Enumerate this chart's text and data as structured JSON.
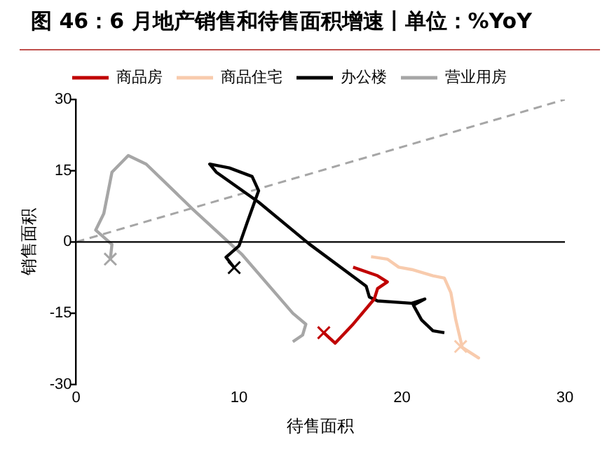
{
  "chart_data": {
    "type": "line",
    "title": "图 46：6 月地产销售和待售面积增速丨单位：%YoY",
    "xlabel": "待售面积",
    "ylabel": "销售面积",
    "xlim": [
      0,
      30
    ],
    "xticks": [
      0,
      10,
      20,
      30
    ],
    "ylim": [
      -30,
      30
    ],
    "yticks": [
      -30,
      -15,
      0,
      15,
      30
    ],
    "grid": false,
    "ref_lines": [
      {
        "axis": "y",
        "value": 0,
        "color": "#000000",
        "line_style": "solid"
      }
    ],
    "legend": "top",
    "marker": "none",
    "line_style": "solid",
    "series": [
      {
        "name": "商品房",
        "color": "#c00000",
        "x": [
          17,
          18.5,
          19.1,
          18.5,
          18.3,
          17,
          15.9,
          15.2
        ],
        "values": [
          -5.3,
          -7.1,
          -8.4,
          -9.8,
          -12,
          -17.3,
          -21.3,
          -19.1
        ]
      },
      {
        "name": "商品住宅",
        "color": "#f8cbad",
        "x": [
          18.1,
          19.1,
          19.8,
          20.6,
          21.9,
          22.6,
          23,
          23.3,
          23.7,
          24.7,
          23.6
        ],
        "values": [
          -3.1,
          -3.6,
          -5.3,
          -5.8,
          -7.1,
          -7.6,
          -10.7,
          -16.4,
          -22.2,
          -24.4,
          -22
        ]
      },
      {
        "name": "办公楼",
        "color": "#000000",
        "x": [
          22.6,
          21.9,
          21.2,
          20.7,
          21.4,
          20.6,
          18.5,
          18,
          17.8,
          14.3,
          11.2,
          8.6,
          8.2,
          9.4,
          10.8,
          11.2,
          10.5,
          10,
          9.2,
          9.7
        ],
        "values": [
          -19.1,
          -18.7,
          -16.4,
          -13.3,
          -12,
          -12.9,
          -12.4,
          -11.6,
          -9.3,
          -0.4,
          8.4,
          14.7,
          16.4,
          15.6,
          13.8,
          10.8,
          4.1,
          -0.8,
          -3.2,
          -5.4
        ]
      },
      {
        "name": "营业用房",
        "color": "#a6a6a6",
        "x": [
          13.3,
          13.9,
          14.1,
          13.3,
          10.2,
          7.1,
          4.3,
          3.2,
          2.2,
          1.7,
          1.2,
          2.2,
          2.1
        ],
        "values": [
          -21,
          -19.6,
          -17.3,
          -15,
          -2.7,
          7.1,
          16.4,
          18.2,
          14.7,
          6,
          2.5,
          -0.5,
          -3.6
        ]
      },
      {
        "type": "scatter",
        "marker": "cross",
        "color": "#c00000",
        "x": [
          15.2
        ],
        "values": [
          -19.1
        ]
      },
      {
        "type": "scatter",
        "marker": "cross",
        "color": "#f8cbad",
        "x": [
          23.6
        ],
        "values": [
          -22
        ]
      },
      {
        "type": "scatter",
        "marker": "cross",
        "color": "#000000",
        "x": [
          9.7
        ],
        "values": [
          -5.4
        ]
      },
      {
        "type": "scatter",
        "marker": "cross",
        "color": "#a6a6a6",
        "x": [
          2.1
        ],
        "values": [
          -3.6
        ]
      },
      {
        "type": "line",
        "color": "#a6a6a6",
        "line_style": "dashed",
        "x": [
          0,
          30
        ],
        "values": [
          0,
          30
        ]
      }
    ]
  }
}
